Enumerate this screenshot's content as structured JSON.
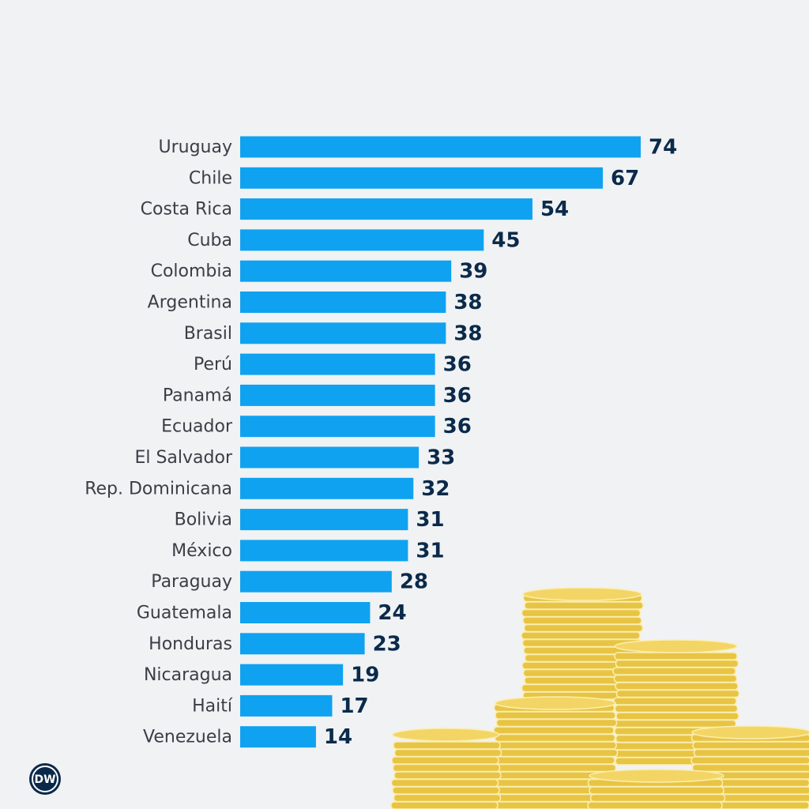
{
  "chart_data": {
    "type": "bar",
    "orientation": "horizontal",
    "color": "#0fa2f0",
    "categories": [
      "Uruguay",
      "Chile",
      "Costa Rica",
      "Cuba",
      "Colombia",
      "Argentina",
      "Brasil",
      "Perú",
      "Panamá",
      "Ecuador",
      "El Salvador",
      "Rep. Dominicana",
      "Bolivia",
      "México",
      "Paraguay",
      "Guatemala",
      "Honduras",
      "Nicaragua",
      "Haití",
      "Venezuela"
    ],
    "values": [
      74,
      67,
      54,
      45,
      39,
      38,
      38,
      36,
      36,
      36,
      33,
      32,
      31,
      31,
      28,
      24,
      23,
      19,
      17,
      14
    ]
  },
  "logo": "DW"
}
